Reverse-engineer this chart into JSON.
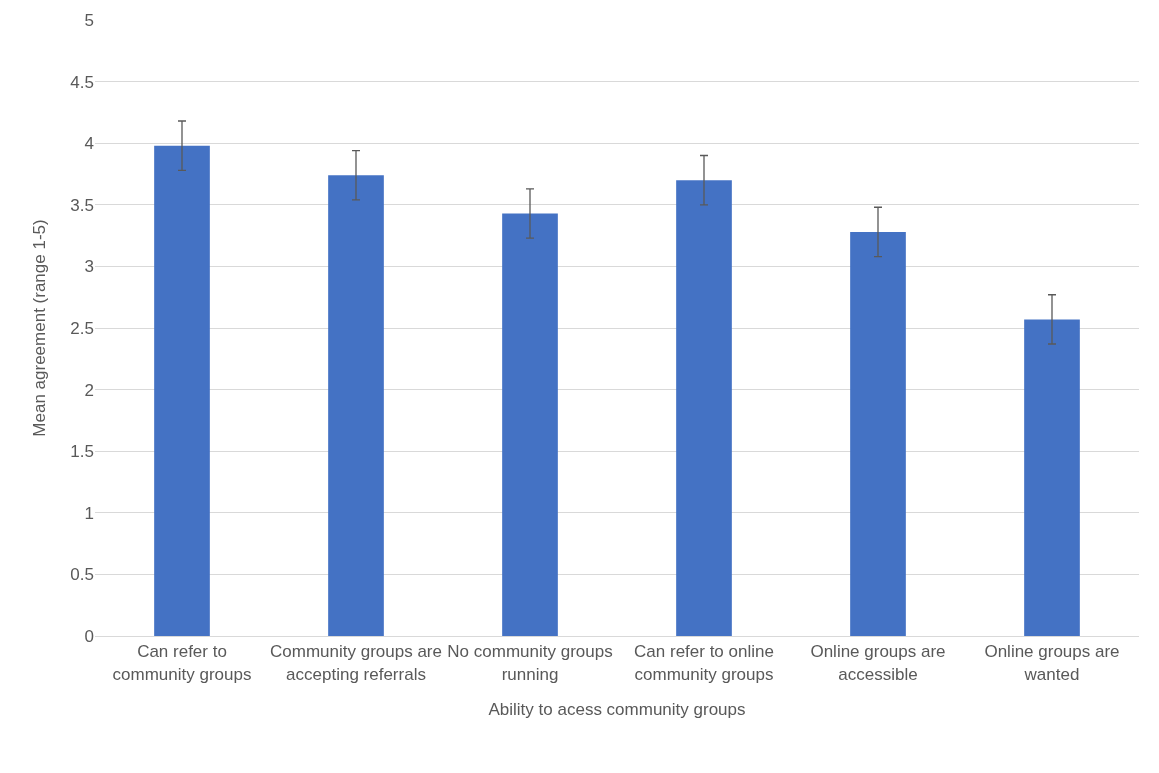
{
  "chart_data": {
    "type": "bar",
    "xlabel": "Ability to acess community groups",
    "ylabel": "Mean agreement (range 1-5)",
    "categories": [
      "Can refer to community groups",
      "Community groups are accepting referrals",
      "No community groups running",
      "Can refer to online community groups",
      "Online groups are accessible",
      "Online groups are wanted"
    ],
    "values": [
      3.98,
      3.74,
      3.43,
      3.7,
      3.28,
      2.57
    ],
    "errors": [
      0.2,
      0.2,
      0.2,
      0.2,
      0.2,
      0.2
    ],
    "color": "#4472c4",
    "ylim": [
      0,
      5
    ],
    "yticks": [
      0,
      0.5,
      1,
      1.5,
      2,
      2.5,
      3,
      3.5,
      4,
      4.5,
      5
    ],
    "grid": "y"
  }
}
